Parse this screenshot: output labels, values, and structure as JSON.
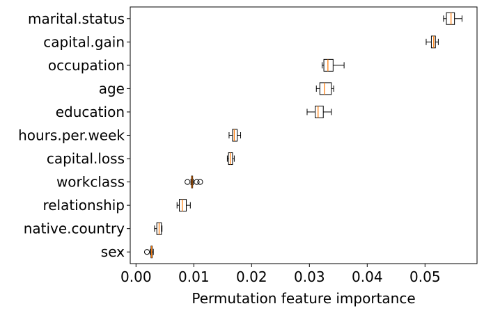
{
  "chart_data": {
    "type": "boxplot",
    "orientation": "horizontal",
    "xlabel": "Permutation feature importance",
    "ylabel": "",
    "xlim": [
      -0.001,
      0.059
    ],
    "xticks": [
      0.0,
      0.01,
      0.02,
      0.03,
      0.04,
      0.05
    ],
    "xtick_labels": [
      "0.00",
      "0.01",
      "0.02",
      "0.03",
      "0.04",
      "0.05"
    ],
    "grid": false,
    "colors": {
      "box": "#000000",
      "median": "#ff7f0e",
      "fill": "#ffffff"
    },
    "features": [
      {
        "name": "marital.status",
        "whislo": 0.0532,
        "q1": 0.0537,
        "median": 0.0545,
        "q3": 0.0551,
        "whishi": 0.0564,
        "fliers": []
      },
      {
        "name": "capital.gain",
        "whislo": 0.0502,
        "q1": 0.0511,
        "median": 0.0515,
        "q3": 0.0518,
        "whishi": 0.0523,
        "fliers": []
      },
      {
        "name": "occupation",
        "whislo": 0.0322,
        "q1": 0.0325,
        "median": 0.0332,
        "q3": 0.0341,
        "whishi": 0.036,
        "fliers": []
      },
      {
        "name": "age",
        "whislo": 0.0312,
        "q1": 0.0318,
        "median": 0.0326,
        "q3": 0.0338,
        "whishi": 0.0342,
        "fliers": []
      },
      {
        "name": "education",
        "whislo": 0.0296,
        "q1": 0.031,
        "median": 0.0315,
        "q3": 0.0324,
        "whishi": 0.0338,
        "fliers": []
      },
      {
        "name": "hours.per.week",
        "whislo": 0.0161,
        "q1": 0.0167,
        "median": 0.017,
        "q3": 0.0175,
        "whishi": 0.0181,
        "fliers": []
      },
      {
        "name": "capital.loss",
        "whislo": 0.0158,
        "q1": 0.016,
        "median": 0.0163,
        "q3": 0.0167,
        "whishi": 0.017,
        "fliers": []
      },
      {
        "name": "workclass",
        "whislo": 0.0095,
        "q1": 0.0096,
        "median": 0.0097,
        "q3": 0.0098,
        "whishi": 0.0099,
        "fliers": [
          0.0089,
          0.0105,
          0.0111
        ]
      },
      {
        "name": "relationship",
        "whislo": 0.0071,
        "q1": 0.0075,
        "median": 0.008,
        "q3": 0.0087,
        "whishi": 0.0094,
        "fliers": []
      },
      {
        "name": "native.country",
        "whislo": 0.0032,
        "q1": 0.0036,
        "median": 0.004,
        "q3": 0.0044,
        "whishi": 0.0045,
        "fliers": []
      },
      {
        "name": "sex",
        "whislo": 0.0025,
        "q1": 0.0026,
        "median": 0.0027,
        "q3": 0.0028,
        "whishi": 0.003,
        "fliers": [
          0.0019
        ]
      }
    ]
  }
}
